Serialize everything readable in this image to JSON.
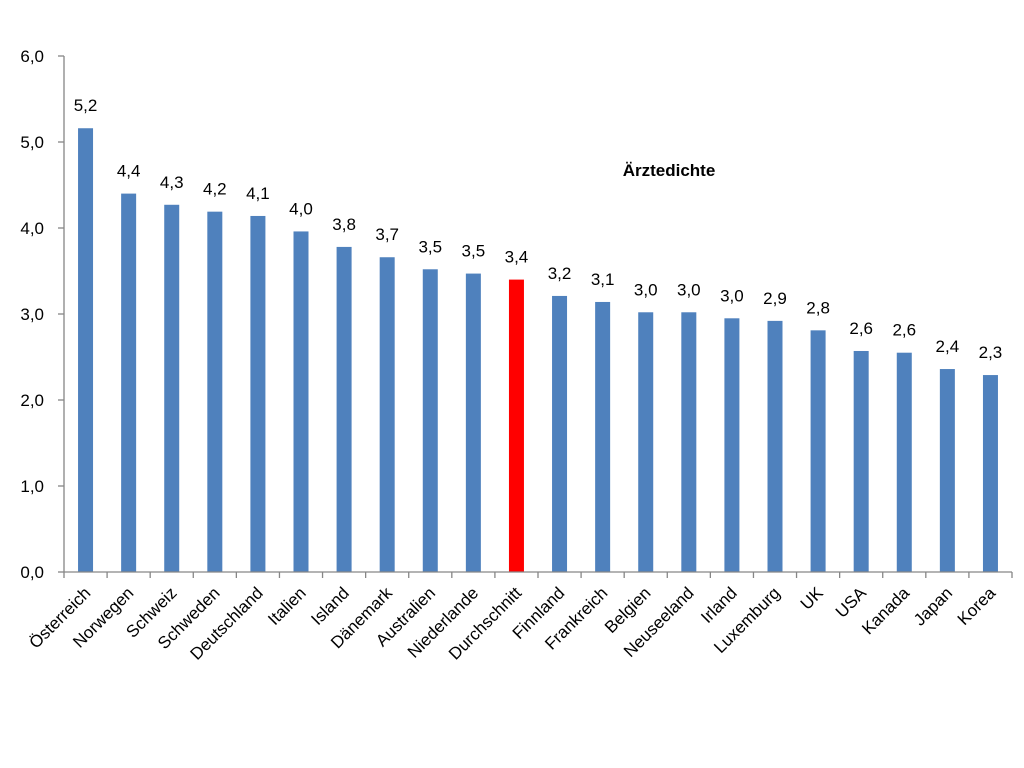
{
  "chart_data": {
    "type": "bar",
    "title": "Ärztedichte",
    "xlabel": "",
    "ylabel": "",
    "ylim": [
      0,
      6
    ],
    "yticks": [
      0,
      1,
      2,
      3,
      4,
      5,
      6
    ],
    "ytick_labels": [
      "0,0",
      "1,0",
      "2,0",
      "3,0",
      "4,0",
      "5,0",
      "6,0"
    ],
    "grid": false,
    "legend": "none",
    "bar_color": "#4f81bd",
    "highlight_color": "#ff0000",
    "highlight_category": "Durchschnitt",
    "categories": [
      "Österreich",
      "Norwegen",
      "Schweiz",
      "Schweden",
      "Deutschland",
      "Italien",
      "Island",
      "Dänemark",
      "Australien",
      "Niederlande",
      "Durchschnitt",
      "Finnland",
      "Frankreich",
      "Belgien",
      "Neuseeland",
      "Irland",
      "Luxemburg",
      "UK",
      "USA",
      "Kanada",
      "Japan",
      "Korea"
    ],
    "values": [
      5.16,
      4.4,
      4.27,
      4.19,
      4.14,
      3.96,
      3.78,
      3.66,
      3.52,
      3.47,
      3.4,
      3.21,
      3.14,
      3.02,
      3.02,
      2.95,
      2.92,
      2.81,
      2.57,
      2.55,
      2.36,
      2.29
    ],
    "data_labels": [
      "5,2",
      "4,4",
      "4,3",
      "4,2",
      "4,1",
      "4,0",
      "3,8",
      "3,7",
      "3,5",
      "3,5",
      "3,4",
      "3,2",
      "3,1",
      "3,0",
      "3,0",
      "3,0",
      "2,9",
      "2,8",
      "2,6",
      "2,6",
      "2,4",
      "2,3"
    ]
  }
}
